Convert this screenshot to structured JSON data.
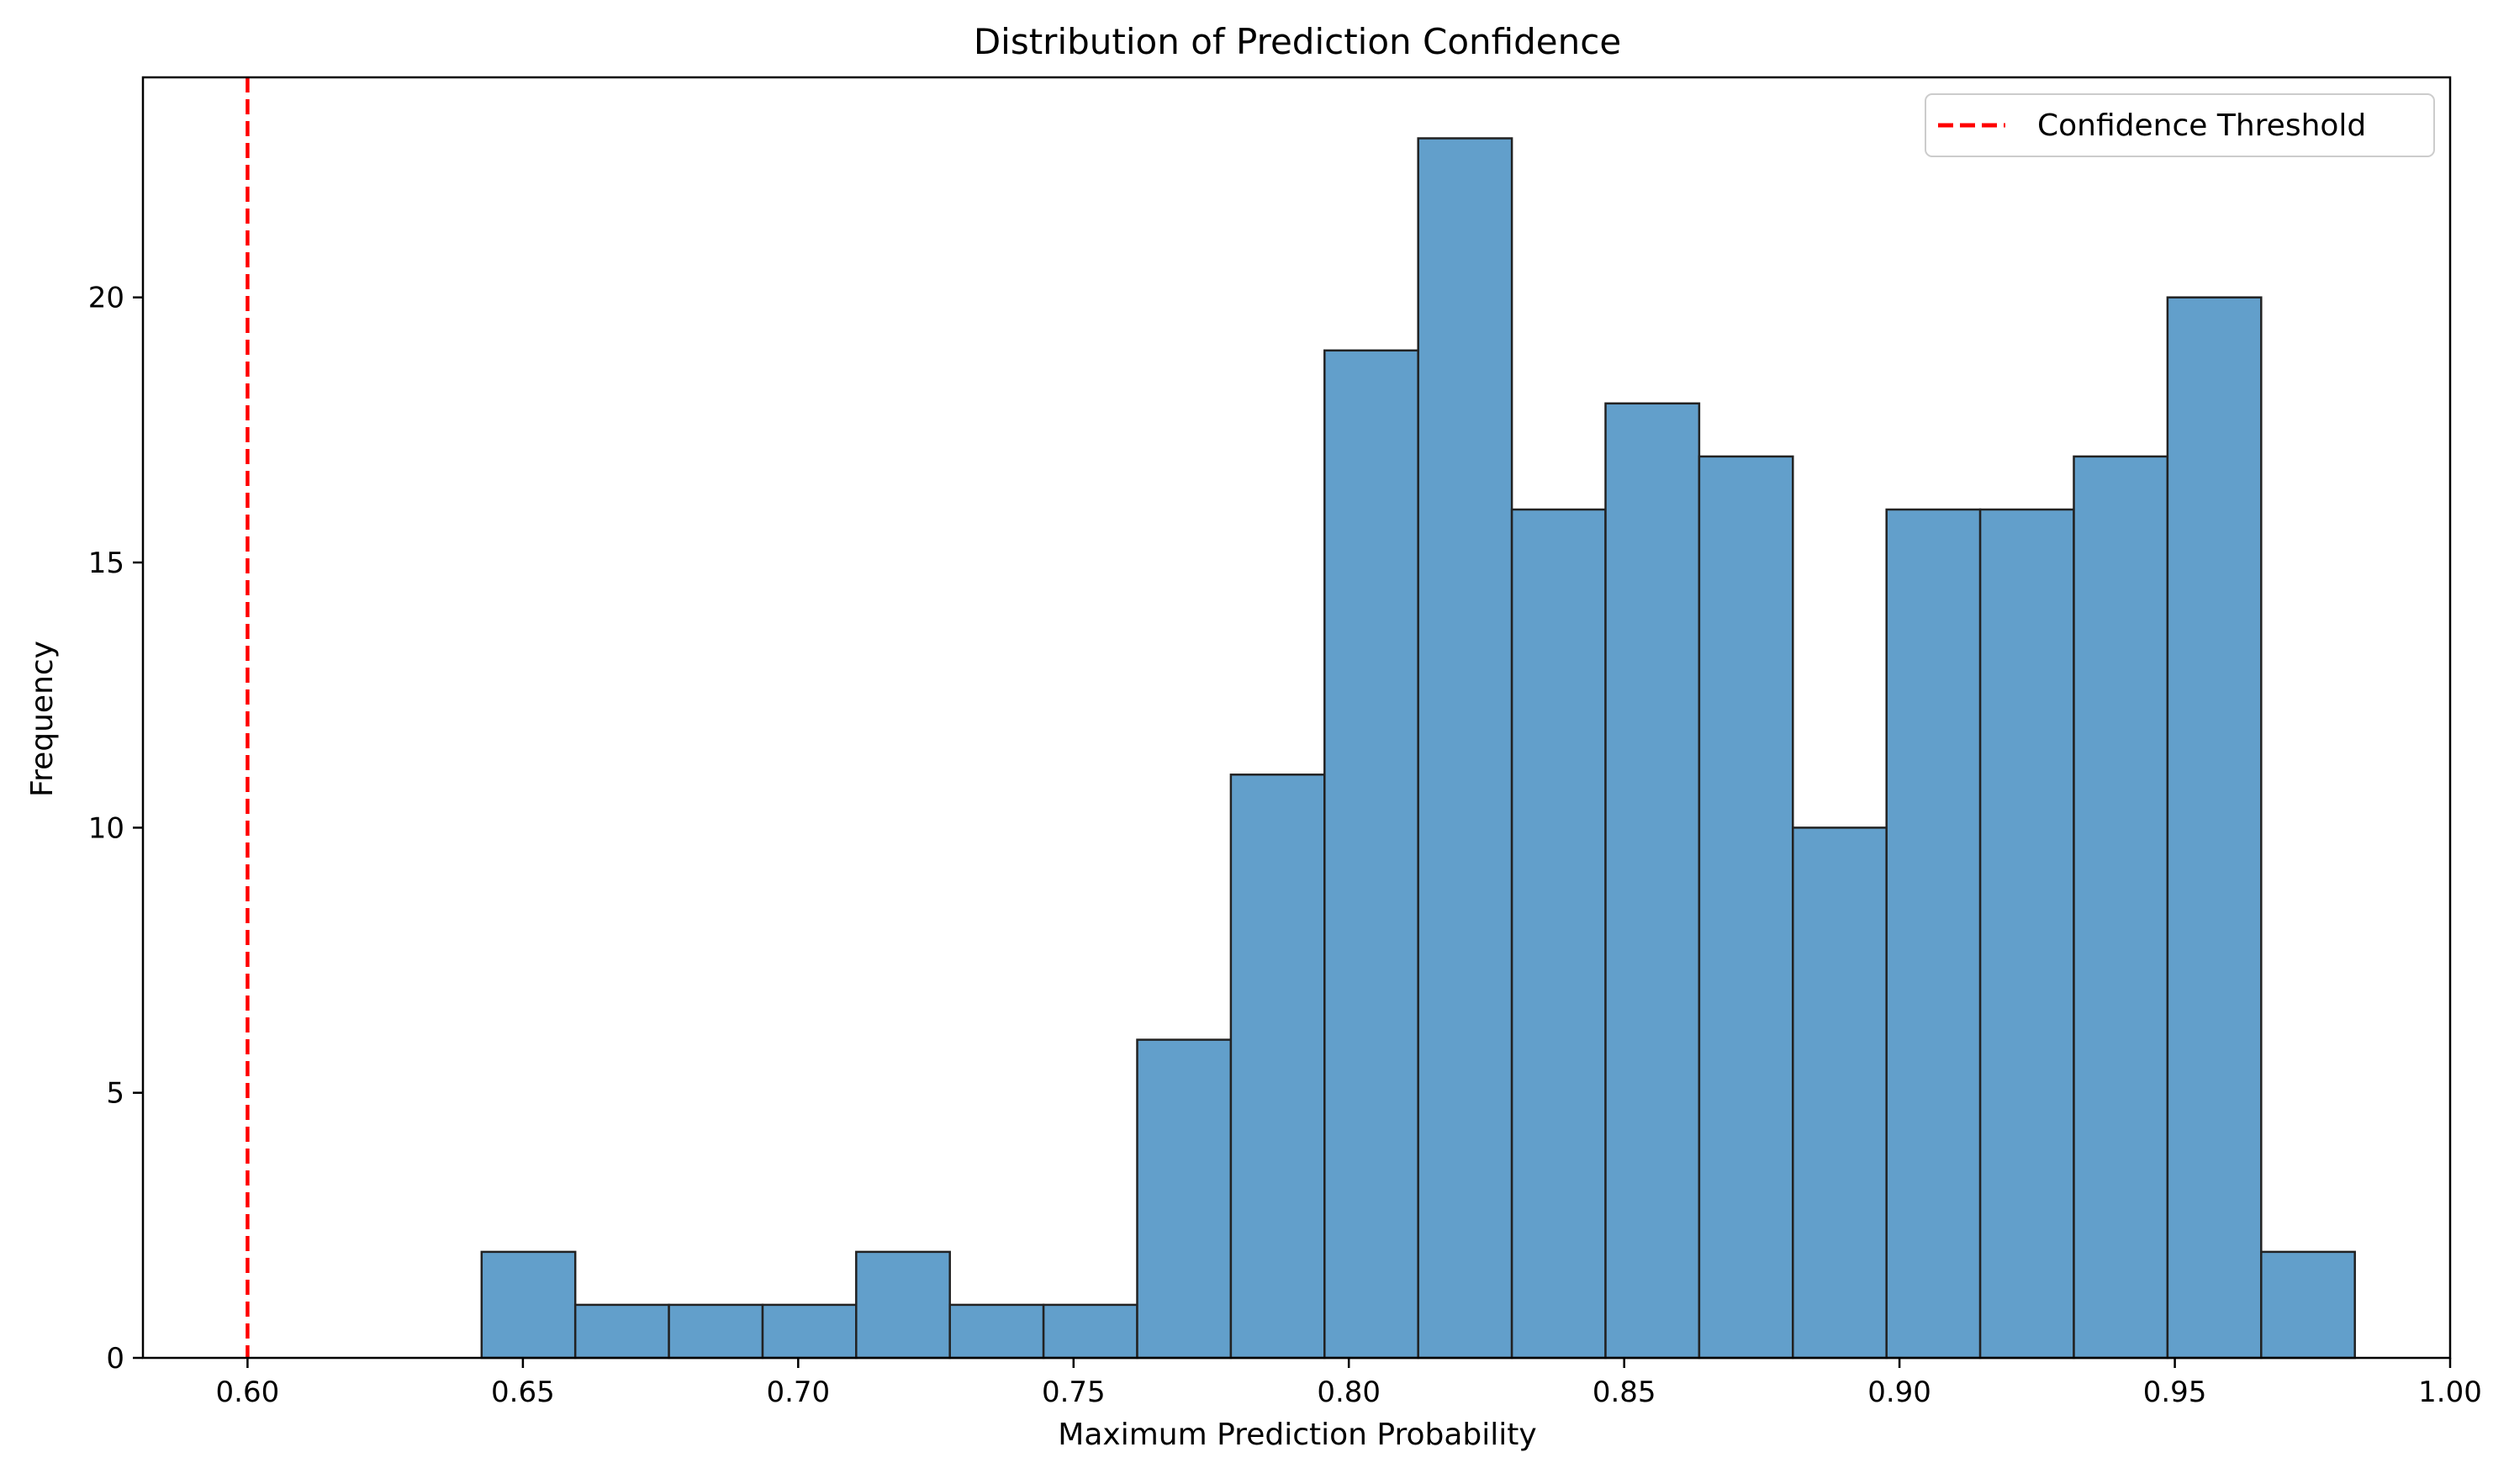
{
  "chart_data": {
    "type": "bar",
    "title": "Distribution of Prediction Confidence",
    "xlabel": "Maximum Prediction Probability",
    "ylabel": "Frequency",
    "xlim": [
      0.581,
      1.0
    ],
    "ylim": [
      0,
      24.15
    ],
    "x_ticks": [
      "0.60",
      "0.65",
      "0.70",
      "0.75",
      "0.80",
      "0.85",
      "0.90",
      "0.95",
      "1.00"
    ],
    "y_ticks": [
      "0",
      "5",
      "10",
      "15",
      "20"
    ],
    "grid": false,
    "legend": {
      "placement": "top-right",
      "entries": [
        "Confidence Threshold"
      ]
    },
    "bins": {
      "start": 0.6425,
      "width": 0.01701,
      "counts": [
        2,
        1,
        1,
        1,
        2,
        1,
        1,
        6,
        11,
        19,
        23,
        16,
        18,
        17,
        10,
        16,
        16,
        17,
        20,
        2
      ]
    },
    "threshold": {
      "name": "Confidence Threshold",
      "x": 0.6,
      "style": "dashed"
    },
    "colors": {
      "bar": "#629fcb",
      "edge": "#222222",
      "threshold": "#ff0000"
    }
  }
}
